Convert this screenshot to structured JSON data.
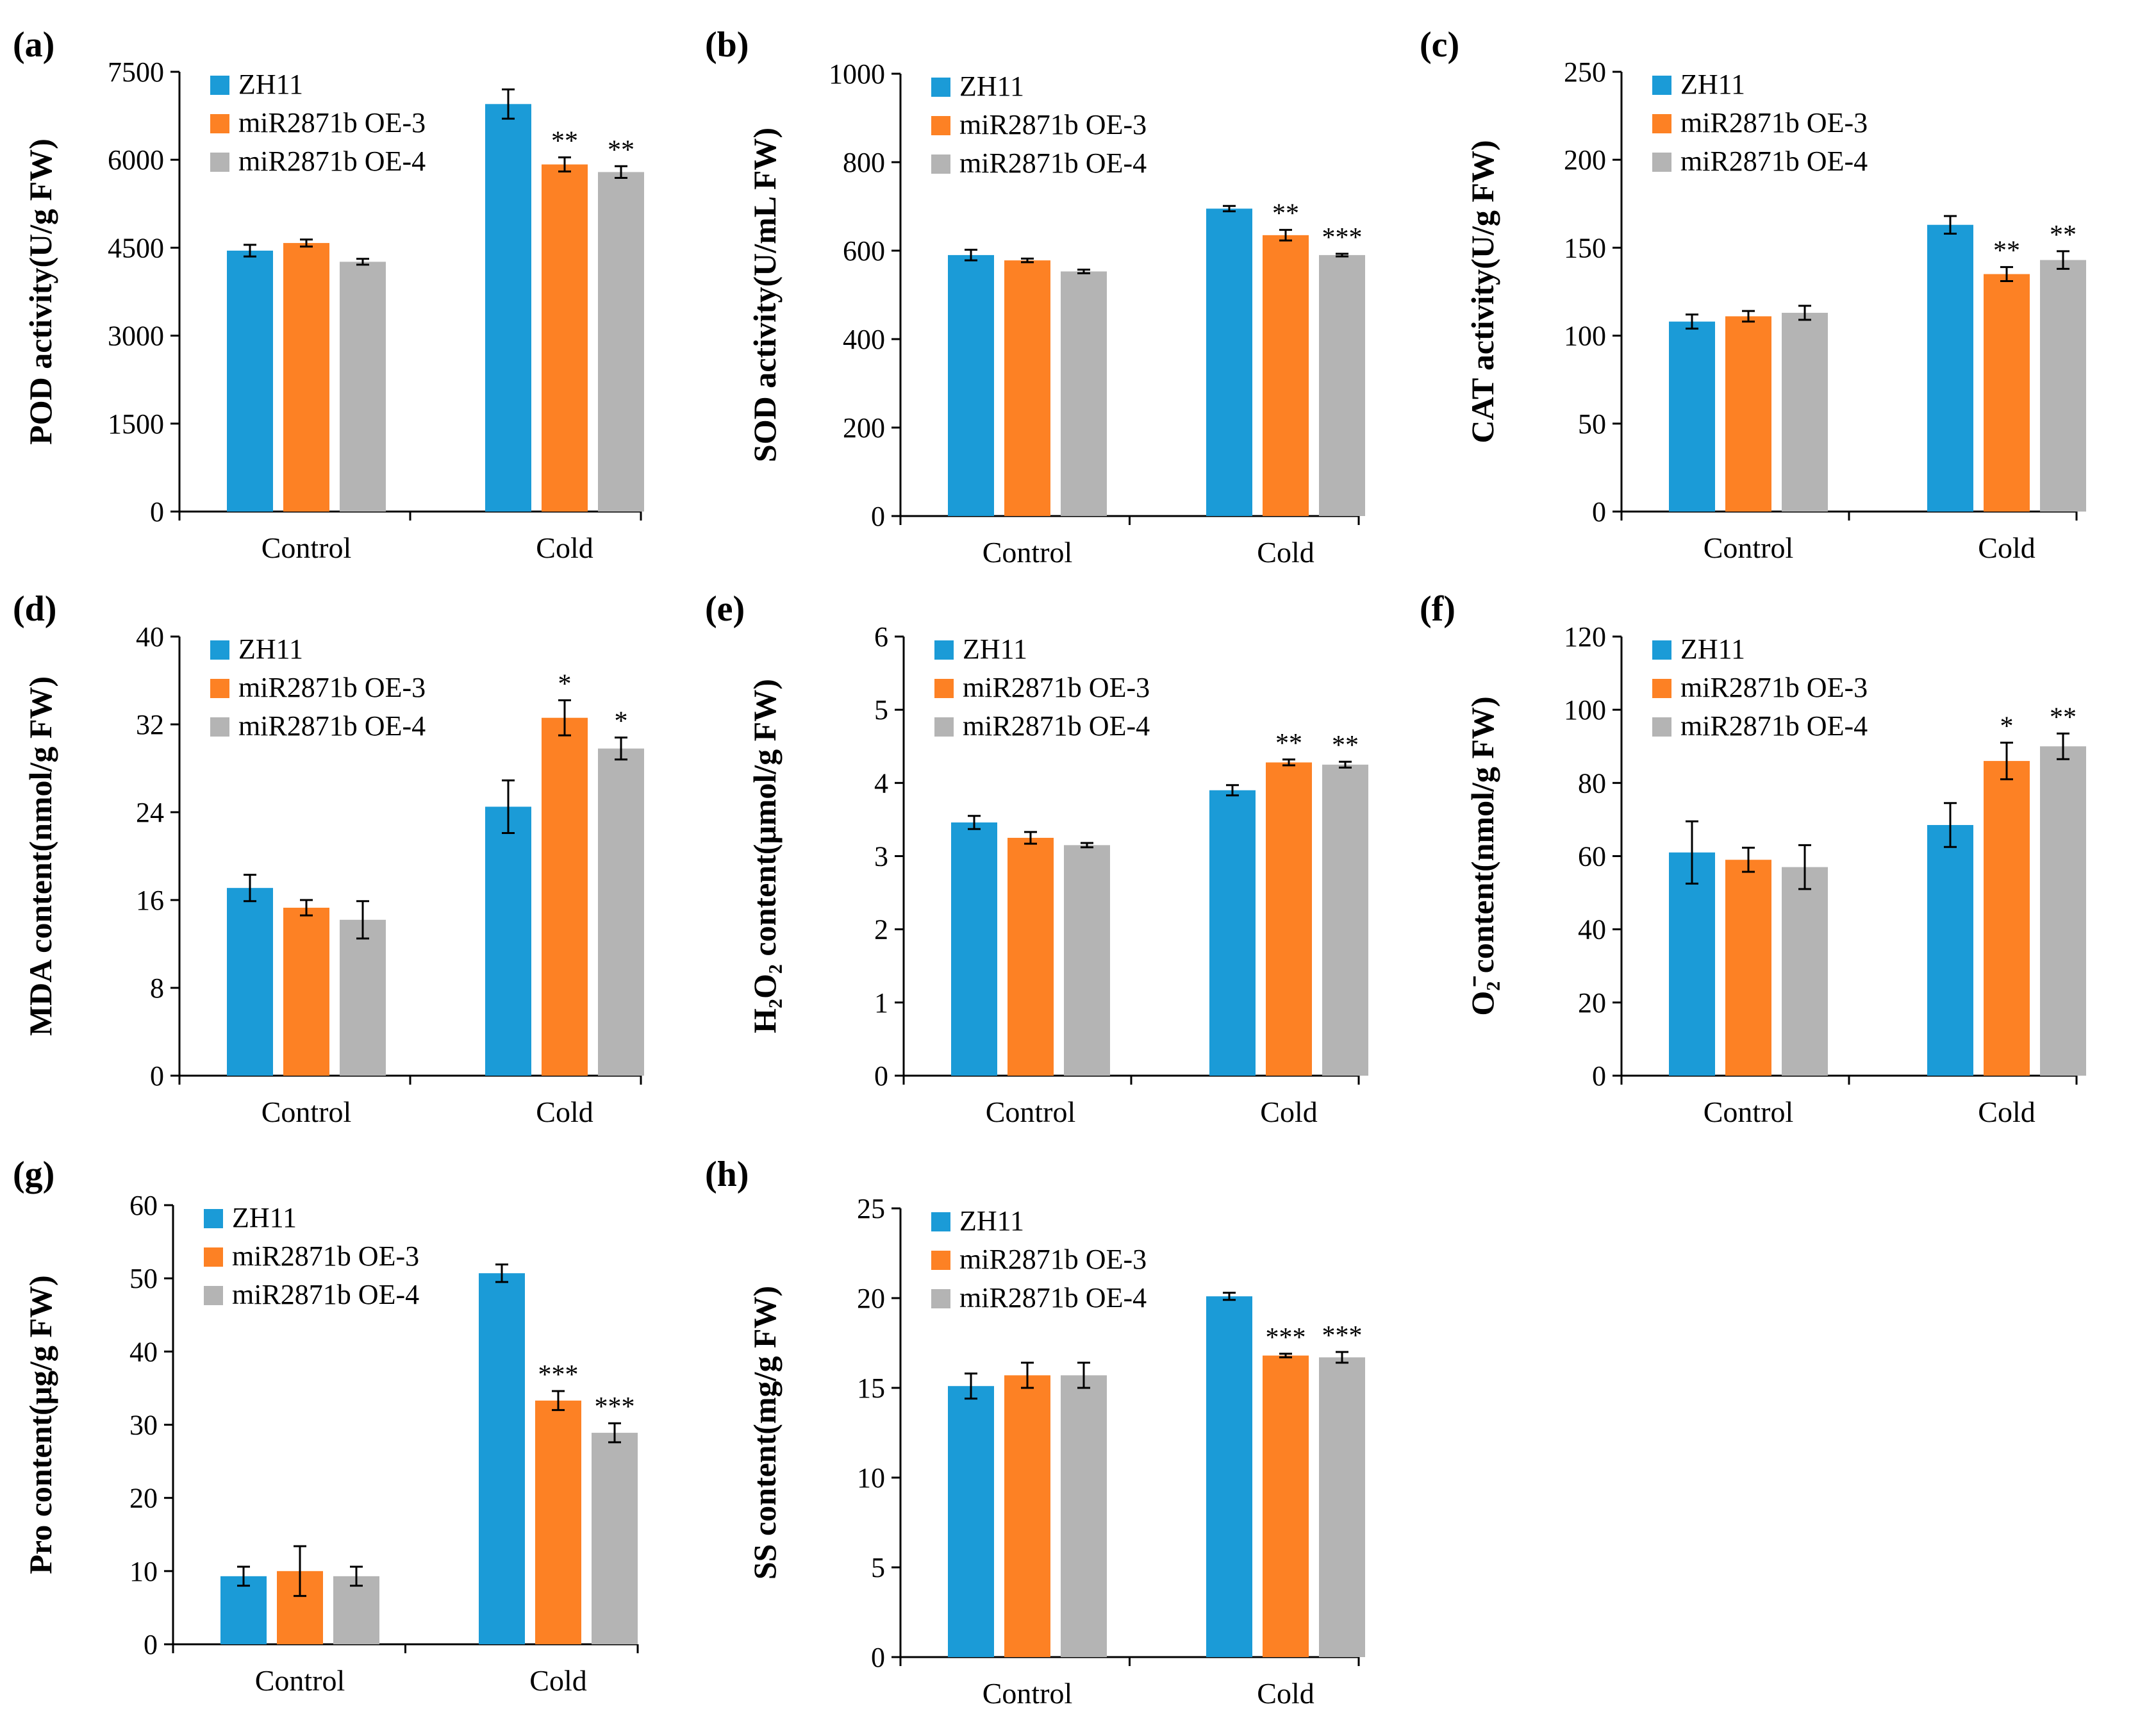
{
  "colors": {
    "zh11": "#1b9bd7",
    "oe3": "#fd8124",
    "oe4": "#b4b4b4"
  },
  "legend": [
    "ZH11",
    "miR2871b OE-3",
    "miR2871b OE-4"
  ],
  "chart_data": [
    {
      "type": "bar",
      "label": "(a)",
      "ylabel": "POD activity(U/g FW)",
      "ylim": [
        0,
        7500
      ],
      "yticks": [
        0,
        1500,
        3000,
        4500,
        6000,
        7500
      ],
      "categories": [
        "Control",
        "Cold"
      ],
      "series": [
        {
          "name": "ZH11",
          "values": [
            4450,
            6950
          ],
          "errors": [
            100,
            250
          ]
        },
        {
          "name": "miR2871b OE-3",
          "values": [
            4580,
            5920
          ],
          "errors": [
            60,
            120
          ]
        },
        {
          "name": "miR2871b OE-4",
          "values": [
            4260,
            5790
          ],
          "errors": [
            50,
            100
          ]
        }
      ],
      "significance": [
        [
          "",
          ""
        ],
        [
          "",
          "**"
        ],
        [
          "",
          "**"
        ]
      ]
    },
    {
      "type": "bar",
      "label": "(b)",
      "ylabel": "SOD activity(U/mL FW)",
      "ylim": [
        0,
        1000
      ],
      "yticks": [
        0,
        200,
        400,
        600,
        800,
        1000
      ],
      "categories": [
        "Control",
        "Cold"
      ],
      "series": [
        {
          "name": "ZH11",
          "values": [
            590,
            695
          ],
          "errors": [
            12,
            6
          ]
        },
        {
          "name": "miR2871b OE-3",
          "values": [
            578,
            635
          ],
          "errors": [
            4,
            12
          ]
        },
        {
          "name": "miR2871b OE-4",
          "values": [
            553,
            590
          ],
          "errors": [
            4,
            3
          ]
        }
      ],
      "significance": [
        [
          "",
          ""
        ],
        [
          "",
          "**"
        ],
        [
          "",
          "***"
        ]
      ]
    },
    {
      "type": "bar",
      "label": "(c)",
      "ylabel": "CAT activity(U/g FW)",
      "ylim": [
        0,
        250
      ],
      "yticks": [
        0,
        50,
        100,
        150,
        200,
        250
      ],
      "categories": [
        "Control",
        "Cold"
      ],
      "series": [
        {
          "name": "ZH11",
          "values": [
            108,
            163
          ],
          "errors": [
            4,
            5
          ]
        },
        {
          "name": "miR2871b OE-3",
          "values": [
            111,
            135
          ],
          "errors": [
            3,
            4
          ]
        },
        {
          "name": "miR2871b OE-4",
          "values": [
            113,
            143
          ],
          "errors": [
            4,
            5
          ]
        }
      ],
      "significance": [
        [
          "",
          ""
        ],
        [
          "",
          "**"
        ],
        [
          "",
          "**"
        ]
      ]
    },
    {
      "type": "bar",
      "label": "(d)",
      "ylabel": "MDA content(nmol/g FW)",
      "ylim": [
        0,
        40
      ],
      "yticks": [
        0,
        8,
        16,
        24,
        32,
        40
      ],
      "categories": [
        "Control",
        "Cold"
      ],
      "series": [
        {
          "name": "ZH11",
          "values": [
            17.1,
            24.5
          ],
          "errors": [
            1.2,
            2.4
          ]
        },
        {
          "name": "miR2871b OE-3",
          "values": [
            15.3,
            32.6
          ],
          "errors": [
            0.7,
            1.6
          ]
        },
        {
          "name": "miR2871b OE-4",
          "values": [
            14.2,
            29.8
          ],
          "errors": [
            1.7,
            1.0
          ]
        }
      ],
      "significance": [
        [
          "",
          ""
        ],
        [
          "",
          "*"
        ],
        [
          "",
          "*"
        ]
      ]
    },
    {
      "type": "bar",
      "label": "(e)",
      "ylabel": "H₂O₂ content(μmol/g FW)",
      "ylim": [
        0,
        6
      ],
      "yticks": [
        0,
        1,
        2,
        3,
        4,
        5,
        6
      ],
      "categories": [
        "Control",
        "Cold"
      ],
      "series": [
        {
          "name": "ZH11",
          "values": [
            3.46,
            3.9
          ],
          "errors": [
            0.09,
            0.07
          ]
        },
        {
          "name": "miR2871b OE-3",
          "values": [
            3.25,
            4.28
          ],
          "errors": [
            0.08,
            0.04
          ]
        },
        {
          "name": "miR2871b OE-4",
          "values": [
            3.15,
            4.25
          ],
          "errors": [
            0.03,
            0.04
          ]
        }
      ],
      "significance": [
        [
          "",
          ""
        ],
        [
          "",
          "**"
        ],
        [
          "",
          "**"
        ]
      ]
    },
    {
      "type": "bar",
      "label": "(f)",
      "ylabel": "O₂̄ content(nmol/g FW)",
      "ylim": [
        0,
        120
      ],
      "yticks": [
        0,
        20,
        40,
        60,
        80,
        100,
        120
      ],
      "categories": [
        "Control",
        "Cold"
      ],
      "series": [
        {
          "name": "ZH11",
          "values": [
            61,
            68.5
          ],
          "errors": [
            8.5,
            6
          ]
        },
        {
          "name": "miR2871b OE-3",
          "values": [
            59,
            86
          ],
          "errors": [
            3.3,
            5
          ]
        },
        {
          "name": "miR2871b OE-4",
          "values": [
            57,
            90
          ],
          "errors": [
            6,
            3.5
          ]
        }
      ],
      "significance": [
        [
          "",
          ""
        ],
        [
          "",
          "*"
        ],
        [
          "",
          "**"
        ]
      ]
    },
    {
      "type": "bar",
      "label": "(g)",
      "ylabel": "Pro content(μg/g FW)",
      "ylim": [
        0,
        60
      ],
      "yticks": [
        0,
        10,
        20,
        30,
        40,
        50,
        60
      ],
      "categories": [
        "Control",
        "Cold"
      ],
      "series": [
        {
          "name": "ZH11",
          "values": [
            9.3,
            50.7
          ],
          "errors": [
            1.3,
            1.2
          ]
        },
        {
          "name": "miR2871b OE-3",
          "values": [
            10,
            33.3
          ],
          "errors": [
            3.4,
            1.3
          ]
        },
        {
          "name": "miR2871b OE-4",
          "values": [
            9.3,
            28.9
          ],
          "errors": [
            1.3,
            1.3
          ]
        }
      ],
      "significance": [
        [
          "",
          ""
        ],
        [
          "",
          "***"
        ],
        [
          "",
          "***"
        ]
      ]
    },
    {
      "type": "bar",
      "label": "(h)",
      "ylabel": "SS content(mg/g FW)",
      "ylim": [
        0,
        25
      ],
      "yticks": [
        0,
        5,
        10,
        15,
        20,
        25
      ],
      "categories": [
        "Control",
        "Cold"
      ],
      "series": [
        {
          "name": "ZH11",
          "values": [
            15.1,
            20.1
          ],
          "errors": [
            0.7,
            0.2
          ]
        },
        {
          "name": "miR2871b OE-3",
          "values": [
            15.7,
            16.8
          ],
          "errors": [
            0.7,
            0.1
          ]
        },
        {
          "name": "miR2871b OE-4",
          "values": [
            15.7,
            16.7
          ],
          "errors": [
            0.7,
            0.3
          ]
        }
      ],
      "significance": [
        [
          "",
          ""
        ],
        [
          "",
          "***"
        ],
        [
          "",
          "***"
        ]
      ]
    }
  ]
}
